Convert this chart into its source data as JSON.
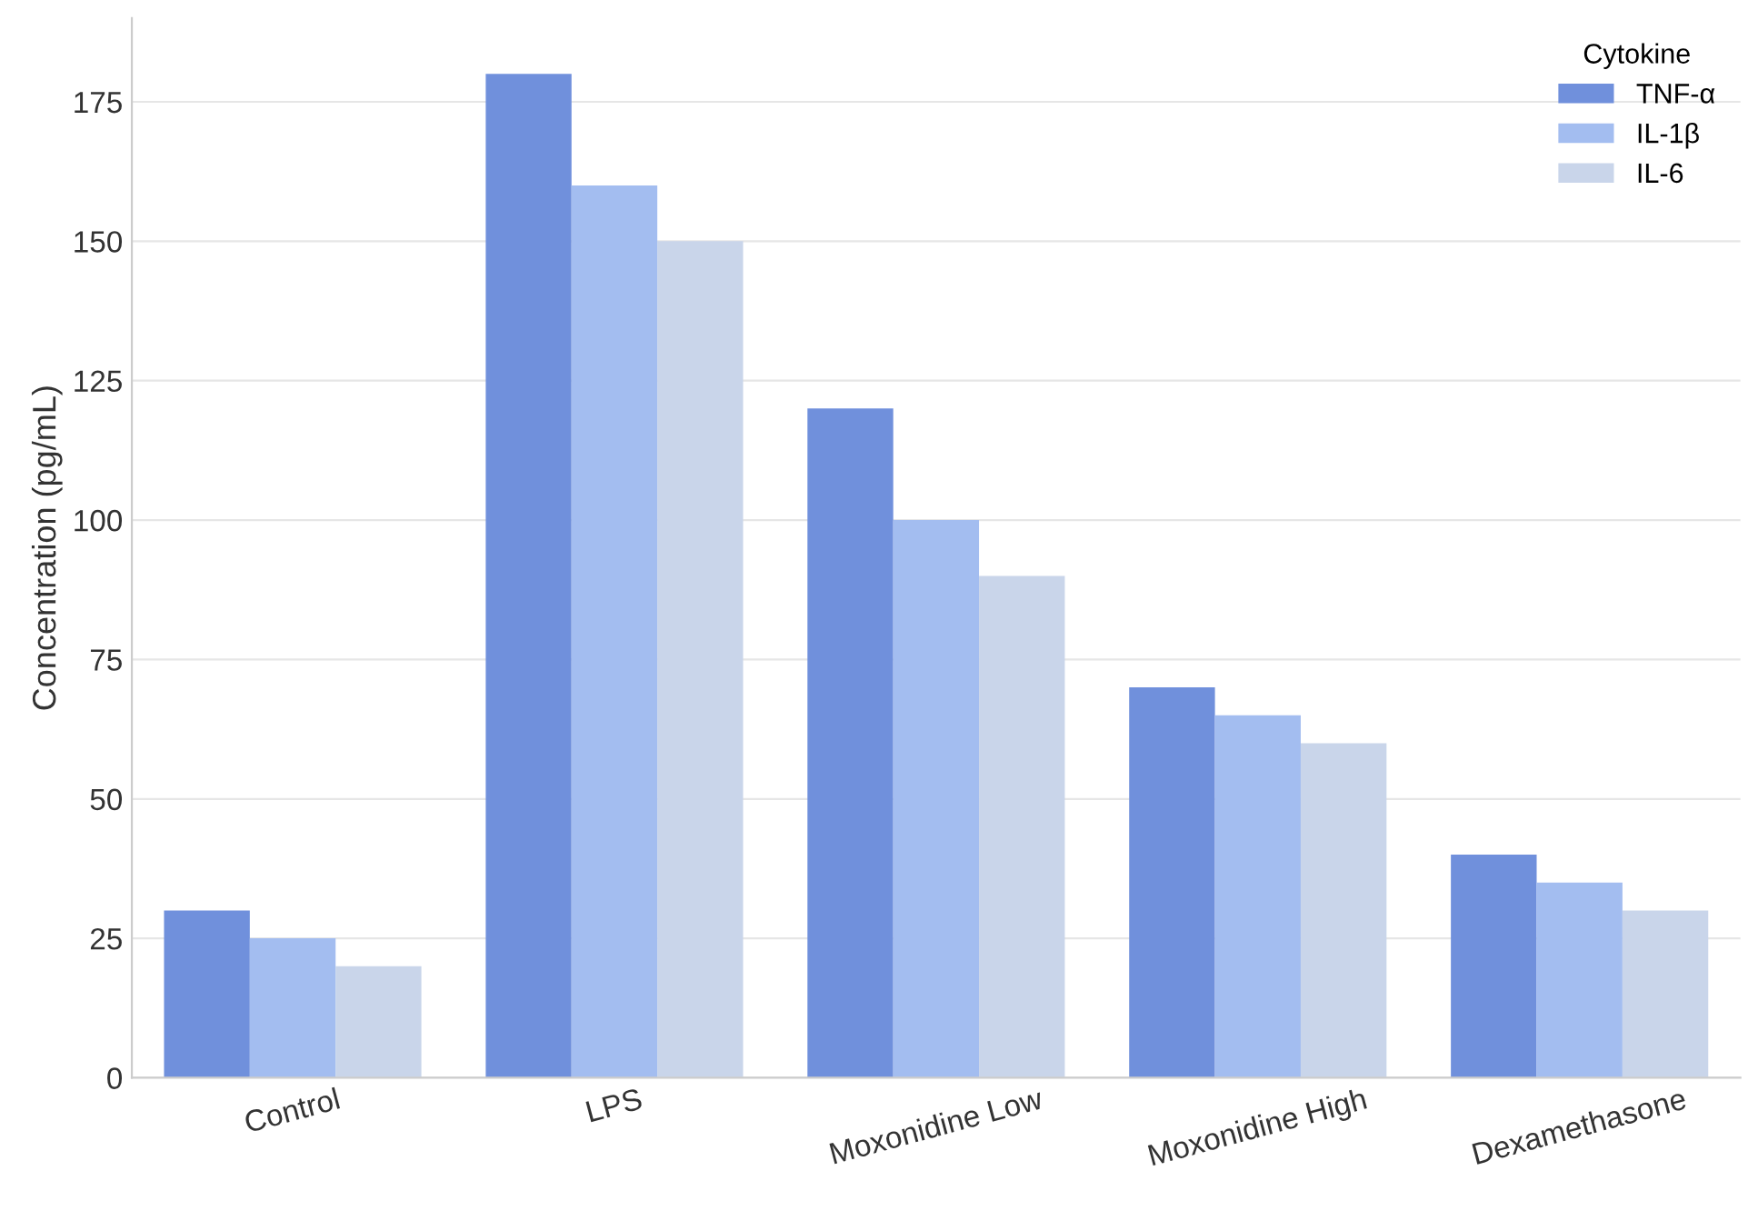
{
  "chart_data": {
    "type": "bar",
    "ylabel": "Concentration (pg/mL)",
    "legend_title": "Cytokine",
    "categories": [
      "Control",
      "LPS",
      "Moxonidine Low",
      "Moxonidine High",
      "Dexamethasone"
    ],
    "series": [
      {
        "name": "TNF-α",
        "color": "#7090dc",
        "values": [
          30,
          180,
          120,
          70,
          40
        ]
      },
      {
        "name": "IL-1β",
        "color": "#a3bdf0",
        "values": [
          25,
          160,
          100,
          65,
          35
        ]
      },
      {
        "name": "IL-6",
        "color": "#c9d5ea",
        "values": [
          20,
          150,
          90,
          60,
          30
        ]
      }
    ],
    "ylim": [
      0,
      190
    ],
    "yticks": [
      0,
      25,
      50,
      75,
      100,
      125,
      150,
      175
    ],
    "grid": "y",
    "legend": "top right"
  }
}
